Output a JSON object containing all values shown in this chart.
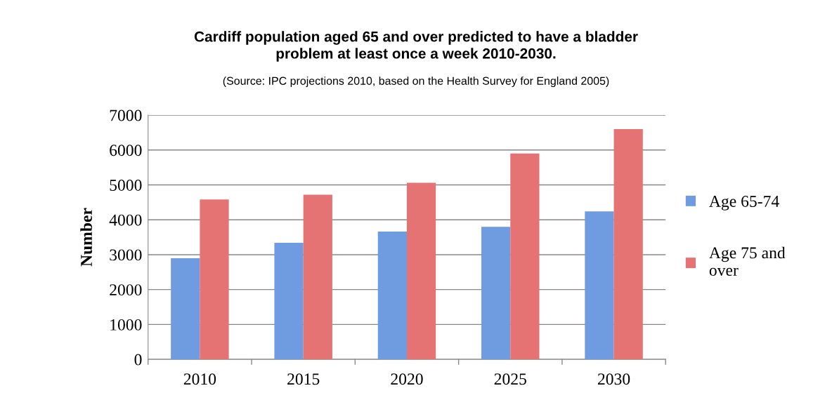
{
  "chart_data": {
    "type": "bar",
    "title": "Cardiff population aged 65 and over predicted to have a bladder\nproblem at least once a week 2010-2030.",
    "subtitle": "(Source: IPC projections 2010, based on the Health Survey for England 2005)",
    "ylabel": "Number",
    "categories": [
      "2010",
      "2015",
      "2020",
      "2025",
      "2030"
    ],
    "series": [
      {
        "name": "Age 65-74",
        "color": "#6f9be0",
        "values": [
          2900,
          3340,
          3660,
          3800,
          4240
        ]
      },
      {
        "name": "Age 75 and\nover",
        "color": "#e57373",
        "values": [
          4580,
          4720,
          5060,
          5900,
          6600
        ]
      }
    ],
    "ylim": [
      0,
      7000
    ],
    "yticks": [
      0,
      1000,
      2000,
      3000,
      4000,
      5000,
      6000,
      7000
    ],
    "grid": "y",
    "legend": "right"
  }
}
